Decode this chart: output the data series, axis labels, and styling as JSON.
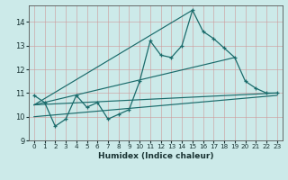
{
  "xlabel": "Humidex (Indice chaleur)",
  "bg_color": "#cceae9",
  "line_color": "#1a6b6b",
  "xlim": [
    -0.5,
    23.5
  ],
  "ylim": [
    9.0,
    14.7
  ],
  "yticks": [
    9,
    10,
    11,
    12,
    13,
    14
  ],
  "xticks": [
    0,
    1,
    2,
    3,
    4,
    5,
    6,
    7,
    8,
    9,
    10,
    11,
    12,
    13,
    14,
    15,
    16,
    17,
    18,
    19,
    20,
    21,
    22,
    23
  ],
  "series1_x": [
    0,
    1,
    2,
    3,
    4,
    5,
    6,
    7,
    8,
    9,
    10,
    11,
    12,
    13,
    14,
    15,
    16,
    17,
    18,
    19,
    20,
    21,
    22,
    23
  ],
  "series1_y": [
    10.9,
    10.6,
    9.6,
    9.9,
    10.9,
    10.4,
    10.6,
    9.9,
    10.1,
    10.3,
    11.5,
    13.2,
    12.6,
    12.5,
    13.0,
    14.5,
    13.6,
    13.3,
    12.9,
    12.5,
    11.5,
    11.2,
    11.0,
    11.0
  ],
  "fan_lines": [
    {
      "x": [
        0,
        15
      ],
      "y": [
        10.5,
        14.5
      ]
    },
    {
      "x": [
        0,
        19
      ],
      "y": [
        10.5,
        12.5
      ]
    },
    {
      "x": [
        0,
        23
      ],
      "y": [
        10.5,
        11.0
      ]
    },
    {
      "x": [
        0,
        23
      ],
      "y": [
        10.0,
        10.9
      ]
    }
  ]
}
